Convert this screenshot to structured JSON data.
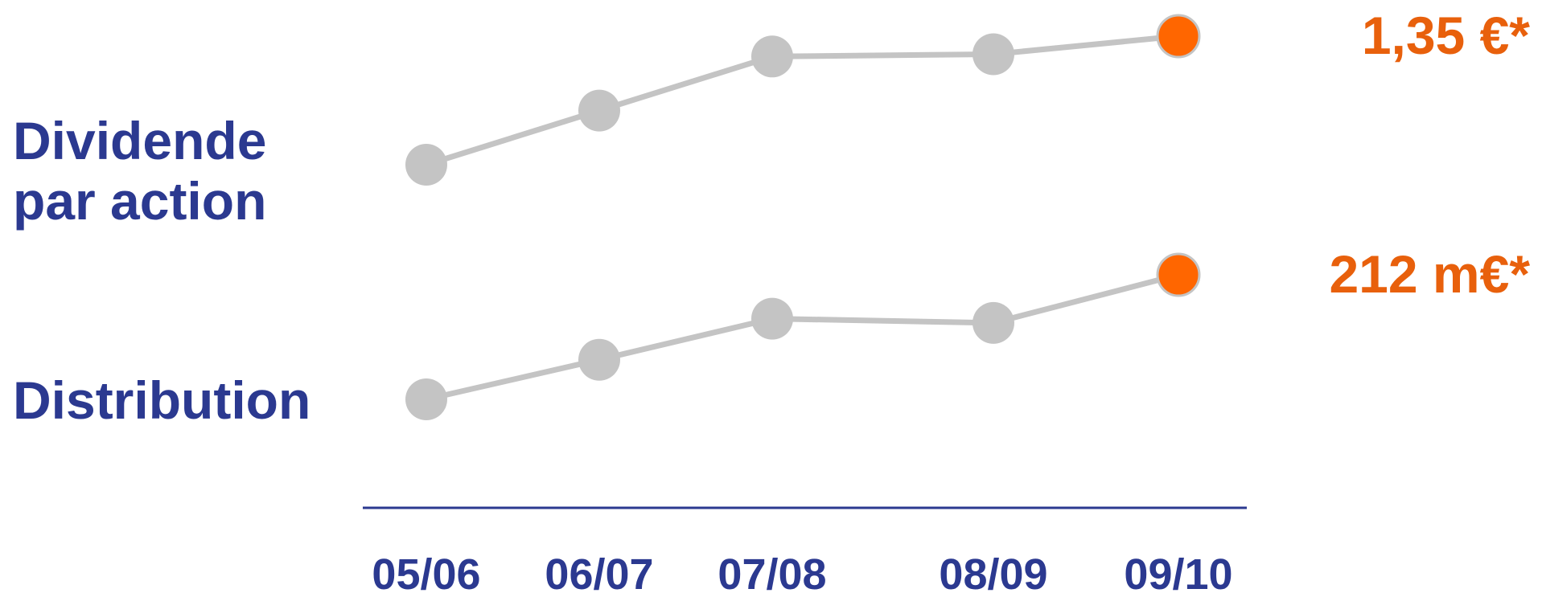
{
  "colors": {
    "label": "#2b3990",
    "axis": "#2b3990",
    "line": "#c4c4c4",
    "point": "#c4c4c4",
    "highlight": "#ff6600",
    "highlight_stroke": "#c4c4c4",
    "value_text": "#e8600c"
  },
  "chart_data": {
    "type": "line",
    "x": [
      "05/06",
      "06/07",
      "07/08",
      "08/09",
      "09/10"
    ],
    "xlabel": "",
    "ylabel": "",
    "grid": false,
    "legend": "none",
    "series": [
      {
        "name": "Dividende par action",
        "label_lines": [
          "Dividende",
          "par action"
        ],
        "values": [
          0.78,
          1.02,
          1.26,
          1.27,
          1.35
        ],
        "final_label": "1,35 €*"
      },
      {
        "name": "Distribution",
        "label_lines": [
          "Distribution"
        ],
        "values": [
          124,
          152,
          181,
          178,
          212
        ],
        "final_label": "212 m€*"
      }
    ]
  }
}
